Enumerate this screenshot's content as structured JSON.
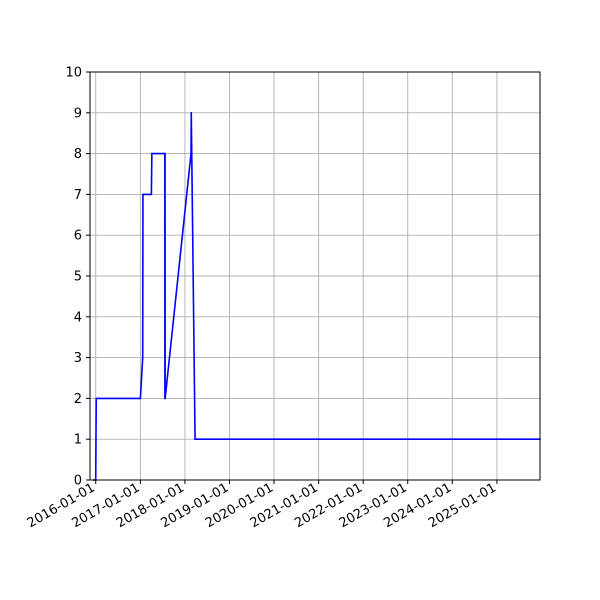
{
  "chart_data": {
    "type": "line",
    "title": "",
    "xlabel": "",
    "ylabel": "",
    "x_axis_type": "date",
    "xlim": [
      "2015-11-15",
      "2025-12-20"
    ],
    "ylim": [
      0,
      10
    ],
    "grid": true,
    "legend": "none",
    "x_tick_labels": [
      "2016-01-01",
      "2017-01-01",
      "2018-01-01",
      "2019-01-01",
      "2020-01-01",
      "2021-01-01",
      "2022-01-01",
      "2023-01-01",
      "2024-01-01",
      "2025-01-01"
    ],
    "y_tick_labels": [
      "0",
      "1",
      "2",
      "3",
      "4",
      "5",
      "6",
      "7",
      "8",
      "9",
      "10"
    ],
    "series": [
      {
        "color": "#0000ff",
        "x": [
          "2015-12-15",
          "2016-01-01",
          "2016-01-05",
          "2017-01-01",
          "2017-01-20",
          "2017-01-22",
          "2017-04-01",
          "2017-04-05",
          "2017-07-20",
          "2017-07-21",
          "2017-07-22",
          "2017-07-23",
          "2018-02-20",
          "2018-02-22",
          "2018-03-25",
          "2018-03-27",
          "2025-12-20"
        ],
        "y": [
          0,
          0,
          2,
          2,
          3,
          7,
          7,
          8,
          8,
          2,
          8,
          2,
          8,
          9,
          1,
          1,
          1
        ]
      }
    ]
  }
}
